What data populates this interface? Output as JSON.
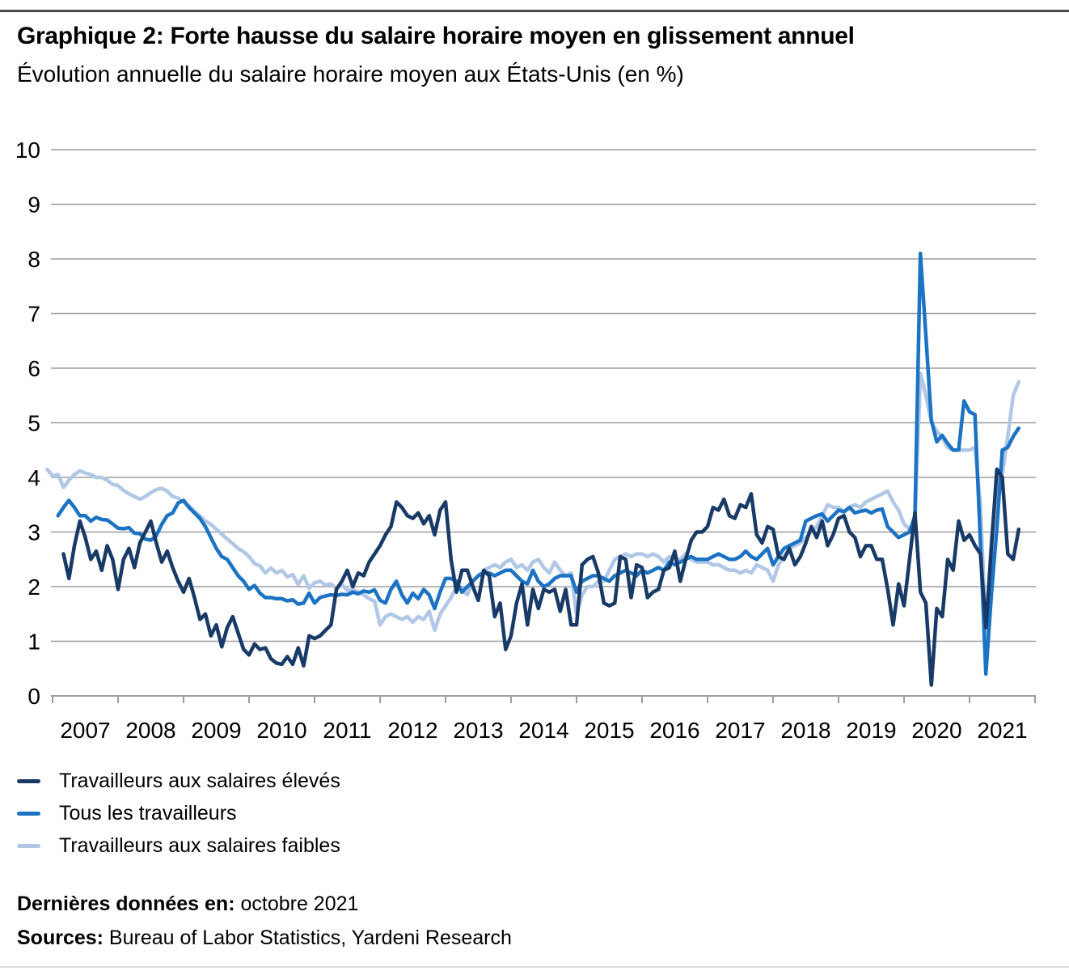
{
  "header": {
    "title": "Graphique 2: Forte hausse du salaire horaire moyen en glissement annuel",
    "subtitle": "Évolution annuelle du salaire horaire moyen aux États-Unis (en %)"
  },
  "chart_data": {
    "type": "line",
    "title": "Évolution annuelle du salaire horaire moyen aux États-Unis (en %)",
    "xlabel": "",
    "ylabel": "%",
    "ylim": [
      0,
      10
    ],
    "grid": true,
    "legend_position": "bottom-left",
    "frequency": "monthly",
    "x_axis": {
      "start_year": 2007,
      "years": [
        "2007",
        "2008",
        "2009",
        "2010",
        "2011",
        "2012",
        "2013",
        "2014",
        "2015",
        "2016",
        "2017",
        "2018",
        "2019",
        "2020",
        "2021"
      ]
    },
    "y_axis": {
      "ticks": [
        0,
        1,
        2,
        3,
        4,
        5,
        6,
        7,
        8,
        9,
        10
      ],
      "range": [
        0,
        10
      ]
    },
    "colors": {
      "high_wage": "#173a66",
      "all_workers": "#1c73c4",
      "low_wage": "#b0c7e6",
      "gridline": "#9d9d9d"
    },
    "series": [
      {
        "name": "Travailleurs aux salaires élevés",
        "key": "high-wage-workers-line",
        "color": "#173a66",
        "start": 2007.1667,
        "values": [
          2.6,
          2.15,
          2.75,
          3.2,
          2.9,
          2.5,
          2.65,
          2.3,
          2.75,
          2.5,
          1.95,
          2.5,
          2.7,
          2.35,
          2.8,
          3.0,
          3.2,
          2.8,
          2.45,
          2.65,
          2.35,
          2.1,
          1.9,
          2.15,
          1.8,
          1.4,
          1.5,
          1.1,
          1.3,
          0.9,
          1.25,
          1.45,
          1.15,
          0.85,
          0.75,
          0.95,
          0.85,
          0.88,
          0.68,
          0.6,
          0.58,
          0.72,
          0.58,
          0.88,
          0.55,
          1.1,
          1.05,
          1.1,
          1.2,
          1.3,
          1.95,
          2.1,
          2.3,
          2.0,
          2.25,
          2.2,
          2.45,
          2.6,
          2.75,
          2.95,
          3.1,
          3.55,
          3.45,
          3.3,
          3.25,
          3.35,
          3.15,
          3.3,
          2.95,
          3.4,
          3.55,
          2.5,
          1.9,
          2.3,
          2.3,
          2.0,
          1.75,
          2.3,
          2.2,
          1.45,
          1.7,
          0.85,
          1.1,
          1.7,
          2.05,
          1.3,
          1.95,
          1.6,
          1.95,
          1.9,
          1.95,
          1.55,
          1.95,
          1.3,
          1.3,
          2.4,
          2.5,
          2.55,
          2.25,
          1.7,
          1.65,
          1.7,
          2.55,
          2.5,
          1.8,
          2.4,
          2.35,
          1.8,
          1.9,
          1.95,
          2.3,
          2.35,
          2.65,
          2.1,
          2.5,
          2.85,
          3.0,
          3.0,
          3.1,
          3.45,
          3.4,
          3.6,
          3.3,
          3.25,
          3.5,
          3.45,
          3.7,
          2.95,
          2.8,
          3.1,
          3.05,
          2.55,
          2.5,
          2.7,
          2.4,
          2.55,
          2.8,
          3.1,
          2.9,
          3.2,
          2.75,
          2.95,
          3.25,
          3.3,
          3.0,
          2.9,
          2.55,
          2.75,
          2.75,
          2.5,
          2.5,
          1.95,
          1.3,
          2.05,
          1.65,
          2.5,
          3.35,
          1.9,
          1.7,
          0.2,
          1.6,
          1.45,
          2.5,
          2.3,
          3.2,
          2.85,
          2.95,
          2.75,
          2.6,
          1.25,
          2.7,
          4.15,
          4.0,
          2.6,
          2.5,
          3.05
        ]
      },
      {
        "name": "Tous les travailleurs",
        "key": "all-workers-line",
        "color": "#1c73c4",
        "start": 2007.0833,
        "values": [
          3.3,
          3.45,
          3.58,
          3.45,
          3.3,
          3.3,
          3.2,
          3.27,
          3.23,
          3.22,
          3.15,
          3.07,
          3.06,
          3.08,
          2.98,
          2.97,
          2.87,
          2.85,
          2.93,
          3.14,
          3.3,
          3.35,
          3.53,
          3.58,
          3.45,
          3.35,
          3.25,
          3.1,
          2.9,
          2.7,
          2.55,
          2.5,
          2.35,
          2.2,
          2.1,
          1.95,
          2.02,
          1.88,
          1.8,
          1.8,
          1.78,
          1.78,
          1.74,
          1.76,
          1.68,
          1.7,
          1.88,
          1.7,
          1.8,
          1.83,
          1.85,
          1.84,
          1.86,
          1.85,
          1.9,
          1.87,
          1.92,
          1.9,
          1.94,
          1.75,
          1.7,
          1.95,
          2.1,
          1.85,
          1.7,
          1.88,
          1.78,
          1.95,
          1.85,
          1.6,
          1.9,
          2.15,
          2.15,
          2.1,
          1.9,
          2.0,
          2.1,
          2.2,
          2.25,
          2.25,
          2.2,
          2.25,
          2.3,
          2.3,
          2.2,
          2.1,
          2.05,
          2.3,
          2.1,
          2.0,
          2.05,
          2.15,
          2.2,
          2.2,
          2.2,
          1.9,
          2.1,
          2.15,
          2.2,
          2.2,
          2.15,
          2.1,
          2.2,
          2.25,
          2.3,
          2.25,
          2.2,
          2.3,
          2.25,
          2.3,
          2.35,
          2.3,
          2.45,
          2.4,
          2.45,
          2.5,
          2.55,
          2.5,
          2.5,
          2.5,
          2.55,
          2.6,
          2.55,
          2.5,
          2.5,
          2.55,
          2.65,
          2.55,
          2.5,
          2.6,
          2.7,
          2.4,
          2.55,
          2.7,
          2.75,
          2.8,
          2.85,
          3.2,
          3.25,
          3.3,
          3.33,
          3.2,
          3.3,
          3.4,
          3.37,
          3.45,
          3.35,
          3.38,
          3.4,
          3.35,
          3.4,
          3.42,
          3.1,
          3.0,
          2.9,
          2.95,
          3.0,
          3.3,
          8.1,
          6.6,
          5.05,
          4.65,
          4.77,
          4.62,
          4.5,
          4.5,
          5.4,
          5.2,
          5.15,
          2.8,
          0.4,
          1.85,
          3.05,
          4.5,
          4.55,
          4.75,
          4.9
        ]
      },
      {
        "name": "Travailleurs aux salaires faibles",
        "key": "low-wage-workers-line",
        "color": "#b0c7e6",
        "start": 2006.9167,
        "values": [
          4.15,
          4.03,
          4.05,
          3.82,
          3.95,
          4.05,
          4.12,
          4.08,
          4.05,
          4.0,
          4.0,
          3.95,
          3.87,
          3.85,
          3.76,
          3.7,
          3.65,
          3.6,
          3.65,
          3.72,
          3.78,
          3.8,
          3.75,
          3.65,
          3.62,
          3.55,
          3.48,
          3.38,
          3.3,
          3.2,
          3.14,
          3.05,
          2.96,
          2.87,
          2.79,
          2.7,
          2.64,
          2.55,
          2.42,
          2.38,
          2.25,
          2.34,
          2.25,
          2.3,
          2.18,
          2.22,
          2.04,
          2.2,
          1.97,
          2.07,
          2.1,
          2.03,
          2.05,
          1.97,
          2.04,
          1.93,
          1.95,
          1.9,
          1.85,
          1.78,
          1.73,
          1.3,
          1.45,
          1.5,
          1.45,
          1.4,
          1.45,
          1.35,
          1.45,
          1.4,
          1.55,
          1.2,
          1.5,
          1.65,
          1.8,
          2.0,
          1.95,
          1.85,
          2.1,
          2.2,
          2.3,
          2.35,
          2.4,
          2.35,
          2.45,
          2.5,
          2.35,
          2.4,
          2.3,
          2.45,
          2.5,
          2.35,
          2.25,
          2.45,
          2.3,
          2.2,
          2.25,
          1.5,
          1.85,
          2.0,
          2.0,
          2.1,
          2.1,
          2.3,
          2.5,
          2.55,
          2.6,
          2.55,
          2.6,
          2.6,
          2.55,
          2.6,
          2.55,
          2.45,
          2.55,
          2.5,
          2.5,
          2.6,
          2.5,
          2.45,
          2.45,
          2.45,
          2.4,
          2.4,
          2.35,
          2.3,
          2.3,
          2.25,
          2.3,
          2.25,
          2.4,
          2.35,
          2.3,
          2.1,
          2.4,
          2.55,
          2.7,
          2.75,
          2.8,
          2.9,
          3.0,
          3.1,
          3.3,
          3.5,
          3.45,
          3.45,
          3.37,
          3.45,
          3.5,
          3.45,
          3.55,
          3.6,
          3.65,
          3.7,
          3.75,
          3.55,
          3.4,
          3.15,
          3.05,
          3.2,
          5.9,
          5.5,
          5.0,
          4.85,
          4.72,
          4.55,
          4.5,
          4.5,
          4.5,
          4.5,
          4.55,
          3.5,
          1.1,
          2.9,
          3.9,
          4.05,
          4.75,
          5.5,
          5.75
        ]
      }
    ]
  },
  "footer": {
    "last_data_label": "Dernières données en:",
    "last_data_value": " octobre 2021",
    "sources_label": "Sources:",
    "sources_value": " Bureau of Labor Statistics, Yardeni Research"
  }
}
